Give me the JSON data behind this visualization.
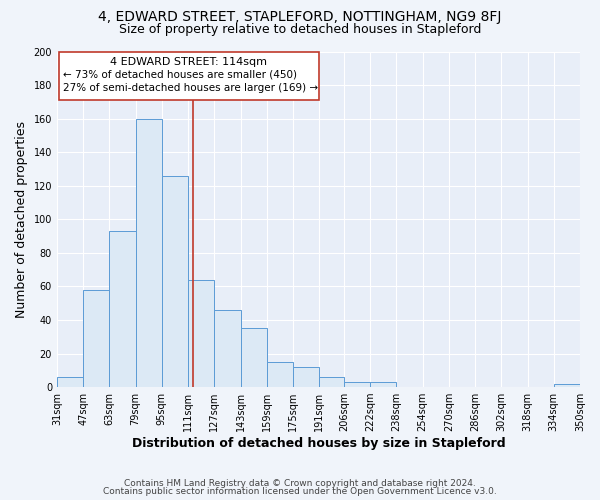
{
  "title": "4, EDWARD STREET, STAPLEFORD, NOTTINGHAM, NG9 8FJ",
  "subtitle": "Size of property relative to detached houses in Stapleford",
  "xlabel": "Distribution of detached houses by size in Stapleford",
  "ylabel": "Number of detached properties",
  "footer_lines": [
    "Contains HM Land Registry data © Crown copyright and database right 2024.",
    "Contains public sector information licensed under the Open Government Licence v3.0."
  ],
  "bin_edges": [
    31,
    47,
    63,
    79,
    95,
    111,
    127,
    143,
    159,
    175,
    191,
    206,
    222,
    238,
    254,
    270,
    286,
    302,
    318,
    334,
    350
  ],
  "counts": [
    6,
    58,
    93,
    160,
    126,
    64,
    46,
    35,
    15,
    12,
    6,
    3,
    3,
    0,
    0,
    0,
    0,
    0,
    0,
    2
  ],
  "bar_face_color": "#dce9f5",
  "bar_edge_color": "#5b9bd5",
  "vline_x": 114,
  "vline_color": "#c0392b",
  "annotation_title": "4 EDWARD STREET: 114sqm",
  "annotation_line1": "← 73% of detached houses are smaller (450)",
  "annotation_line2": "27% of semi-detached houses are larger (169) →",
  "annotation_box_color": "white",
  "annotation_box_edge": "#c0392b",
  "ylim": [
    0,
    200
  ],
  "yticks": [
    0,
    20,
    40,
    60,
    80,
    100,
    120,
    140,
    160,
    180,
    200
  ],
  "tick_labels": [
    "31sqm",
    "47sqm",
    "63sqm",
    "79sqm",
    "95sqm",
    "111sqm",
    "127sqm",
    "143sqm",
    "159sqm",
    "175sqm",
    "191sqm",
    "206sqm",
    "222sqm",
    "238sqm",
    "254sqm",
    "270sqm",
    "286sqm",
    "302sqm",
    "318sqm",
    "334sqm",
    "350sqm"
  ],
  "bg_color": "#f0f4fa",
  "plot_bg_color": "#e8eef8",
  "grid_color": "#ffffff",
  "title_fontsize": 10,
  "subtitle_fontsize": 9,
  "axis_label_fontsize": 9,
  "tick_fontsize": 7,
  "annotation_fontsize": 8,
  "footer_fontsize": 6.5
}
